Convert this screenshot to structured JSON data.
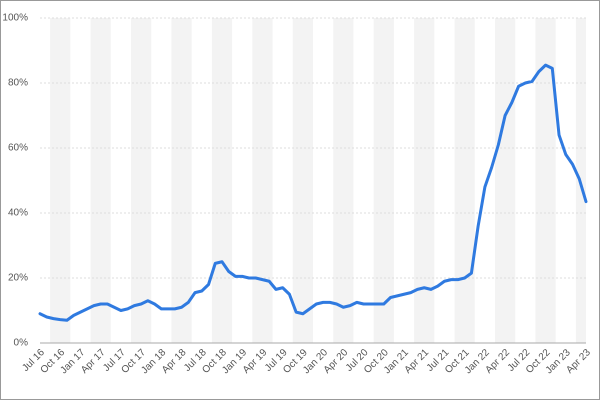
{
  "chart_data": {
    "type": "line",
    "categories": [
      "Jul 16",
      null,
      null,
      "Oct 16",
      null,
      null,
      "Jan 17",
      null,
      null,
      "Apr 17",
      null,
      null,
      "Jul 17",
      null,
      null,
      "Oct 17",
      null,
      null,
      "Jan 18",
      null,
      null,
      "Apr 18",
      null,
      null,
      "Jul 18",
      null,
      null,
      "Oct 18",
      null,
      null,
      "Jan 19",
      null,
      null,
      "Apr 19",
      null,
      null,
      "Jul 19",
      null,
      null,
      "Oct 19",
      null,
      null,
      "Jan 20",
      null,
      null,
      "Apr 20",
      null,
      null,
      "Jul 20",
      null,
      null,
      "Oct 20",
      null,
      null,
      "Jan 21",
      null,
      null,
      "Apr 21",
      null,
      null,
      "Jul 21",
      null,
      null,
      "Oct 21",
      null,
      null,
      "Jan 22",
      null,
      null,
      "Apr 22",
      null,
      null,
      "Jul 22",
      null,
      null,
      "Oct 22",
      null,
      null,
      "Jan 23",
      null,
      null,
      "Apr 23"
    ],
    "values": [
      9,
      8,
      7.5,
      7.2,
      7,
      8.5,
      9.5,
      10.5,
      11.5,
      12,
      12,
      11,
      10,
      10.5,
      11.5,
      12,
      13,
      12,
      10.5,
      10.5,
      10.5,
      11,
      12.5,
      15.5,
      16,
      18,
      24.5,
      25,
      22,
      20.5,
      20.5,
      20,
      20,
      19.5,
      19,
      16.5,
      17,
      15,
      9.5,
      9,
      10.5,
      12,
      12.5,
      12.5,
      12,
      11,
      11.5,
      12.5,
      12,
      12,
      12,
      12,
      14,
      14.5,
      15,
      15.5,
      16.5,
      17,
      16.5,
      17.5,
      19,
      19.5,
      19.5,
      20,
      21.5,
      36,
      48,
      54,
      61,
      70,
      74,
      79,
      80,
      80.5,
      83.5,
      85.5,
      84.5,
      64,
      58,
      55,
      50.5,
      43.5
    ],
    "color": "#2f7ae0",
    "ylim": [
      0,
      100
    ],
    "yticks": [
      {
        "value": 0,
        "label": "0%"
      },
      {
        "value": 20,
        "label": "20%"
      },
      {
        "value": 40,
        "label": "40%"
      },
      {
        "value": 60,
        "label": "60%"
      },
      {
        "value": 80,
        "label": "80%"
      },
      {
        "value": 100,
        "label": "100%"
      }
    ],
    "grid": true
  }
}
